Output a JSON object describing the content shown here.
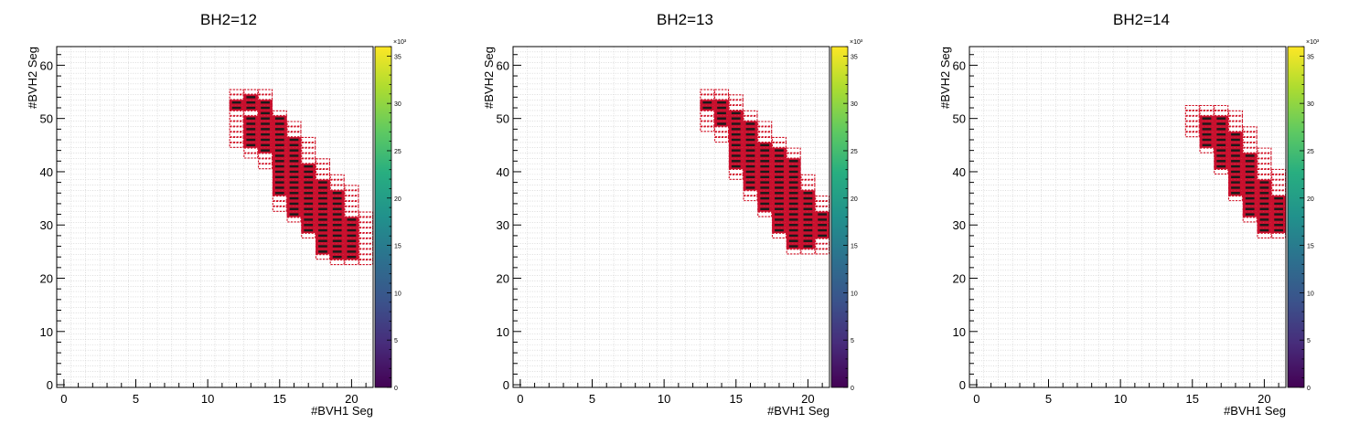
{
  "chart_data": [
    {
      "type": "heatmap",
      "title": "BH2=12",
      "xlabel": "#BVH1 Seg",
      "ylabel": "#BVH2 Seg",
      "xlim": [
        -0.5,
        21.5
      ],
      "ylim": [
        -0.5,
        63.5
      ],
      "xticks": [
        0,
        5,
        10,
        15,
        20
      ],
      "yticks": [
        0,
        10,
        20,
        30,
        40,
        50,
        60
      ],
      "colorbar": {
        "min": 0,
        "max": 36,
        "ticks": [
          0,
          5,
          10,
          15,
          20,
          25,
          30,
          35
        ],
        "exponent": "×10³"
      },
      "grid": true,
      "columns": [
        {
          "x": 12,
          "ymin": 45,
          "ymax": 55,
          "dark": [
            52,
            53
          ]
        },
        {
          "x": 13,
          "ymin": 43,
          "ymax": 55,
          "dark": [
            45,
            46,
            47,
            48,
            49,
            50,
            52,
            53,
            54
          ]
        },
        {
          "x": 14,
          "ymin": 41,
          "ymax": 55,
          "dark": [
            44,
            45,
            46,
            47,
            48,
            49,
            50,
            51,
            52,
            53
          ]
        },
        {
          "x": 15,
          "ymin": 33,
          "ymax": 51,
          "dark": [
            36,
            37,
            38,
            39,
            40,
            41,
            42,
            43,
            44,
            45,
            46,
            47,
            48,
            49,
            50
          ]
        },
        {
          "x": 16,
          "ymin": 31,
          "ymax": 49,
          "dark": [
            32,
            33,
            34,
            35,
            36,
            37,
            38,
            39,
            40,
            41,
            42,
            43,
            44,
            45,
            46
          ]
        },
        {
          "x": 17,
          "ymin": 28,
          "ymax": 46,
          "dark": [
            29,
            30,
            31,
            32,
            33,
            34,
            35,
            36,
            37,
            38,
            39,
            40,
            41
          ]
        },
        {
          "x": 18,
          "ymin": 24,
          "ymax": 42,
          "dark": [
            25,
            26,
            27,
            28,
            29,
            30,
            31,
            32,
            33,
            34,
            35,
            36,
            37,
            38
          ]
        },
        {
          "x": 19,
          "ymin": 23,
          "ymax": 39,
          "dark": [
            24,
            25,
            26,
            27,
            28,
            29,
            30,
            31,
            32,
            33,
            34,
            35,
            36
          ]
        },
        {
          "x": 20,
          "ymin": 23,
          "ymax": 37,
          "dark": [
            24,
            25,
            26,
            27,
            28,
            29,
            30,
            31
          ]
        },
        {
          "x": 21,
          "ymin": 23,
          "ymax": 32,
          "dark": []
        }
      ]
    },
    {
      "type": "heatmap",
      "title": "BH2=13",
      "xlabel": "#BVH1 Seg",
      "ylabel": "#BVH2 Seg",
      "xlim": [
        -0.5,
        21.5
      ],
      "ylim": [
        -0.5,
        63.5
      ],
      "xticks": [
        0,
        5,
        10,
        15,
        20
      ],
      "yticks": [
        0,
        10,
        20,
        30,
        40,
        50,
        60
      ],
      "colorbar": {
        "min": 0,
        "max": 36,
        "ticks": [
          0,
          5,
          10,
          15,
          20,
          25,
          30,
          35
        ],
        "exponent": "×10³"
      },
      "grid": true,
      "columns": [
        {
          "x": 13,
          "ymin": 48,
          "ymax": 55,
          "dark": [
            52,
            53
          ]
        },
        {
          "x": 14,
          "ymin": 46,
          "ymax": 55,
          "dark": [
            49,
            50,
            51,
            52,
            53
          ]
        },
        {
          "x": 15,
          "ymin": 39,
          "ymax": 54,
          "dark": [
            41,
            42,
            43,
            44,
            45,
            46,
            47,
            48,
            49,
            50,
            51
          ]
        },
        {
          "x": 16,
          "ymin": 35,
          "ymax": 51,
          "dark": [
            37,
            38,
            39,
            40,
            41,
            42,
            43,
            44,
            45,
            46,
            47,
            48,
            49
          ]
        },
        {
          "x": 17,
          "ymin": 32,
          "ymax": 49,
          "dark": [
            33,
            34,
            35,
            36,
            37,
            38,
            39,
            40,
            41,
            42,
            43,
            44,
            45
          ]
        },
        {
          "x": 18,
          "ymin": 28,
          "ymax": 46,
          "dark": [
            29,
            30,
            31,
            32,
            33,
            34,
            35,
            36,
            37,
            38,
            39,
            40,
            41,
            42,
            43,
            44
          ]
        },
        {
          "x": 19,
          "ymin": 25,
          "ymax": 44,
          "dark": [
            26,
            27,
            28,
            29,
            30,
            31,
            32,
            33,
            34,
            35,
            36,
            37,
            38,
            39,
            40,
            41,
            42
          ]
        },
        {
          "x": 20,
          "ymin": 25,
          "ymax": 39,
          "dark": [
            26,
            27,
            28,
            29,
            30,
            31,
            32,
            33,
            34,
            35,
            36
          ]
        },
        {
          "x": 21,
          "ymin": 25,
          "ymax": 35,
          "dark": [
            28,
            29,
            30,
            31,
            32
          ]
        }
      ]
    },
    {
      "type": "heatmap",
      "title": "BH2=14",
      "xlabel": "#BVH1 Seg",
      "ylabel": "#BVH2 Seg",
      "xlim": [
        -0.5,
        21.5
      ],
      "ylim": [
        -0.5,
        63.5
      ],
      "xticks": [
        0,
        5,
        10,
        15,
        20
      ],
      "yticks": [
        0,
        10,
        20,
        30,
        40,
        50,
        60
      ],
      "colorbar": {
        "min": 0,
        "max": 36,
        "ticks": [
          0,
          5,
          10,
          15,
          20,
          25,
          30,
          35
        ],
        "exponent": "×10³"
      },
      "grid": true,
      "columns": [
        {
          "x": 15,
          "ymin": 47,
          "ymax": 52,
          "dark": []
        },
        {
          "x": 16,
          "ymin": 44,
          "ymax": 52,
          "dark": [
            45,
            46,
            47,
            48,
            49,
            50
          ]
        },
        {
          "x": 17,
          "ymin": 40,
          "ymax": 52,
          "dark": [
            41,
            42,
            43,
            44,
            45,
            46,
            47,
            48,
            49,
            50
          ]
        },
        {
          "x": 18,
          "ymin": 35,
          "ymax": 51,
          "dark": [
            36,
            37,
            38,
            39,
            40,
            41,
            42,
            43,
            44,
            45,
            46,
            47
          ]
        },
        {
          "x": 19,
          "ymin": 31,
          "ymax": 48,
          "dark": [
            32,
            33,
            34,
            35,
            36,
            37,
            38,
            39,
            40,
            41,
            42,
            43
          ]
        },
        {
          "x": 20,
          "ymin": 28,
          "ymax": 44,
          "dark": [
            29,
            30,
            31,
            32,
            33,
            34,
            35,
            36,
            37,
            38
          ]
        },
        {
          "x": 21,
          "ymin": 28,
          "ymax": 40,
          "dark": [
            29,
            30,
            31,
            32,
            33,
            34,
            35
          ]
        }
      ]
    }
  ]
}
